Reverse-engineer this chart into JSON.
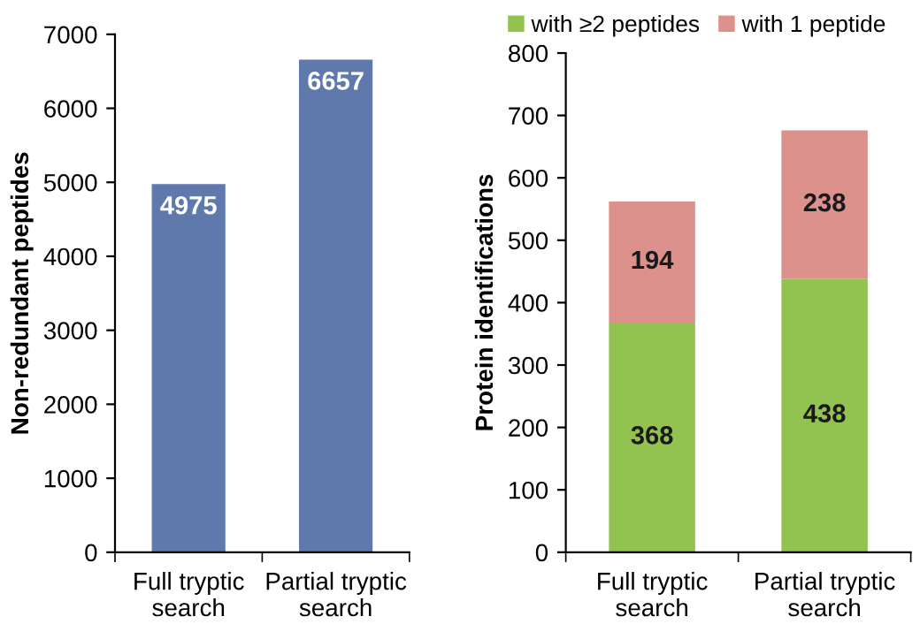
{
  "chart_data": [
    {
      "type": "bar",
      "ylabel": "Non-redundant peptides",
      "categories": [
        "Full tryptic\nsearch",
        "Partial tryptic\nsearch"
      ],
      "values": [
        4975,
        6657
      ],
      "color": "#6079ad",
      "ylim": [
        0,
        7000
      ],
      "yticks": [
        0,
        1000,
        2000,
        3000,
        4000,
        5000,
        6000,
        7000
      ],
      "data_labels": true,
      "grid": false,
      "legend": false
    },
    {
      "type": "bar",
      "stacked": true,
      "ylabel": "Protein identifications",
      "categories": [
        "Full tryptic\nsearch",
        "Partial tryptic\nsearch"
      ],
      "series": [
        {
          "name": "with ≥2 peptides",
          "color": "#92c24f",
          "values": [
            368,
            438
          ]
        },
        {
          "name": "with 1 peptide",
          "color": "#dc918c",
          "values": [
            194,
            238
          ]
        }
      ],
      "ylim": [
        0,
        800
      ],
      "yticks": [
        0,
        100,
        200,
        300,
        400,
        500,
        600,
        700,
        800
      ],
      "data_labels": true,
      "grid": false,
      "legend": "top"
    }
  ]
}
